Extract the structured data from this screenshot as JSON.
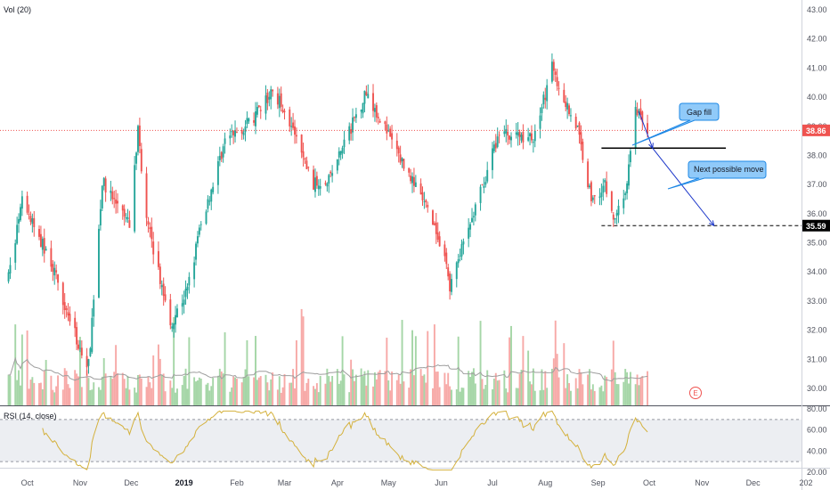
{
  "volume_label": "Vol (20)",
  "rsi_label": "RSI (14, close)",
  "earnings_marker": "E",
  "colors": {
    "up": "#26a69a",
    "down": "#ef5350",
    "vol_up": "#a5d6a7",
    "vol_down": "#f7a9a7",
    "rsi_line": "#d4b13c",
    "price_line": "#ef5350",
    "callout_fill": "#90caf9",
    "callout_stroke": "#1e88e5",
    "arrow": "#1a35c9"
  },
  "price_label": "38.86",
  "target_label": "35.59",
  "annotations": {
    "gap_fill": "Gap fill",
    "next_move": "Next possible move"
  },
  "chart_data": {
    "type": "candlestick",
    "y_axis_ticks": [
      "43.00",
      "42.00",
      "41.00",
      "40.00",
      "39.00",
      "38.00",
      "37.00",
      "36.00",
      "35.00",
      "34.00",
      "33.00",
      "32.00",
      "31.00",
      "30.00"
    ],
    "rsi_axis_ticks": [
      "80.00",
      "60.00",
      "40.00",
      "20.00"
    ],
    "x_axis_ticks": [
      "Oct",
      "Nov",
      "Dec",
      "2019",
      "Feb",
      "Mar",
      "Apr",
      "May",
      "Jun",
      "Jul",
      "Aug",
      "Sep",
      "Oct",
      "Nov",
      "Dec",
      "202"
    ],
    "ylim": [
      29.7,
      43.3
    ],
    "current_price": 38.86,
    "target_price": 35.59,
    "gap_level": 38.25,
    "rsi_bands": [
      70,
      30
    ],
    "anchors": [
      {
        "date": "Sep 20",
        "close": 33.8
      },
      {
        "date": "Sep 28",
        "close": 36.4
      },
      {
        "date": "Oct 15",
        "close": 34.3
      },
      {
        "date": "Oct 31",
        "close": 31.5
      },
      {
        "date": "Nov 6",
        "close": 30.8
      },
      {
        "date": "Nov 14",
        "close": 37.1
      },
      {
        "date": "Nov 30",
        "close": 35.6
      },
      {
        "date": "Dec 5",
        "close": 38.9
      },
      {
        "date": "Dec 10",
        "close": 35.8
      },
      {
        "date": "Dec 24",
        "close": 32.2
      },
      {
        "date": "Jan 3",
        "close": 33.4
      },
      {
        "date": "Jan 10",
        "close": 35.4
      },
      {
        "date": "Jan 25",
        "close": 38.5
      },
      {
        "date": "Feb 10",
        "close": 39.2
      },
      {
        "date": "Feb 22",
        "close": 40.2
      },
      {
        "date": "Mar 1",
        "close": 39.6
      },
      {
        "date": "Mar 18",
        "close": 37.0
      },
      {
        "date": "Mar 28",
        "close": 37.3
      },
      {
        "date": "Apr 18",
        "close": 40.2
      },
      {
        "date": "May 1",
        "close": 38.7
      },
      {
        "date": "May 25",
        "close": 36.0
      },
      {
        "date": "Jun 4",
        "close": 34.2
      },
      {
        "date": "Jun 6",
        "close": 33.5
      },
      {
        "date": "Jun 20",
        "close": 36.0
      },
      {
        "date": "Jul 5",
        "close": 38.8
      },
      {
        "date": "Jul 25",
        "close": 38.6
      },
      {
        "date": "Aug 5",
        "close": 41.0
      },
      {
        "date": "Aug 10",
        "close": 40.2
      },
      {
        "date": "Aug 20",
        "close": 38.9
      },
      {
        "date": "Aug 28",
        "close": 36.5
      },
      {
        "date": "Sep 5",
        "close": 37.0
      },
      {
        "date": "Sep 10",
        "close": 35.8
      },
      {
        "date": "Sep 18",
        "close": 36.9
      },
      {
        "date": "Sep 22",
        "close": 39.7
      },
      {
        "date": "Sep 30",
        "close": 38.9
      }
    ]
  }
}
